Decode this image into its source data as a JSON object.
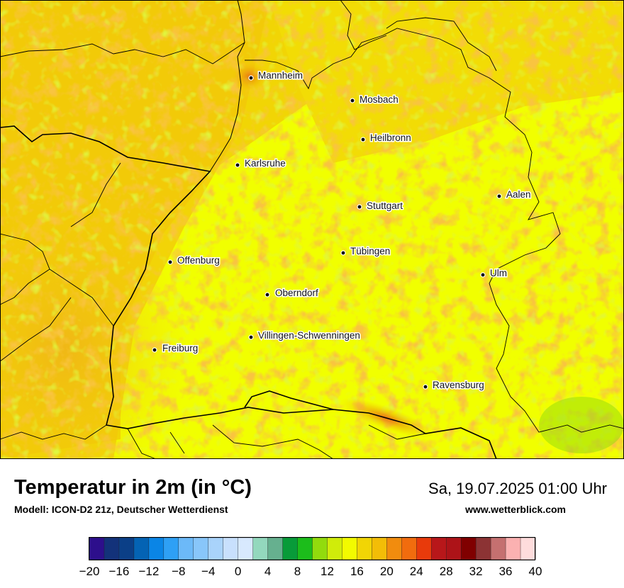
{
  "title": "Temperatur in 2m (in °C)",
  "subtitle": "Modell: ICON-D2 21z, Deutscher Wetterdienst",
  "datetime": "Sa, 19.07.2025 01:00 Uhr",
  "source": "www.wetterblick.com",
  "cities": [
    {
      "name": "Mannheim"
    },
    {
      "name": "Mosbach"
    },
    {
      "name": "Heilbronn"
    },
    {
      "name": "Karlsruhe"
    },
    {
      "name": "Aalen"
    },
    {
      "name": "Stuttgart"
    },
    {
      "name": "Tübingen"
    },
    {
      "name": "Offenburg"
    },
    {
      "name": "Ulm"
    },
    {
      "name": "Oberndorf"
    },
    {
      "name": "Villingen-Schwenningen"
    },
    {
      "name": "Freiburg"
    },
    {
      "name": "Ravensburg"
    }
  ],
  "legend": {
    "tick_labels": [
      "−20",
      "−16",
      "−12",
      "−8",
      "−4",
      "0",
      "4",
      "8",
      "12",
      "16",
      "20",
      "24",
      "28",
      "32",
      "36",
      "40"
    ],
    "min": -20,
    "max": 40,
    "step": 2,
    "colors": [
      "#2d0f8c",
      "#13327a",
      "#0b3f87",
      "#0463b4",
      "#0a85e6",
      "#2ea0f5",
      "#6cb9f8",
      "#88c6fa",
      "#a9d3fb",
      "#c8e0fd",
      "#d8e9fe",
      "#93d8bd",
      "#66b08f",
      "#089b39",
      "#1cbd1b",
      "#92db0d",
      "#d0ec0a",
      "#f2fb00",
      "#f1d505",
      "#f3bd07",
      "#f18c0e",
      "#f16c0e",
      "#e83a0b",
      "#b8171a",
      "#ad1318",
      "#800000",
      "#8c3334",
      "#c57070",
      "#fbb1b1",
      "#fedcdc"
    ]
  }
}
